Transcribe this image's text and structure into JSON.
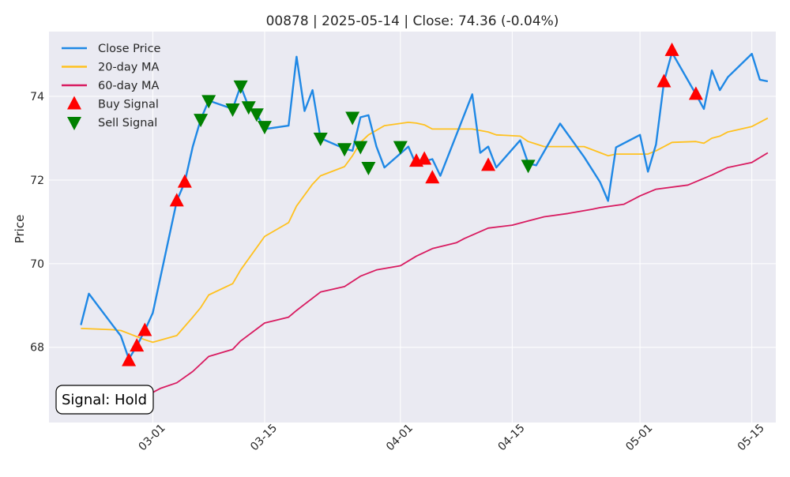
{
  "chart_data": {
    "type": "line",
    "title": "00878 | 2025-05-14 | Close: 74.36 (-0.04%)",
    "xlabel": "",
    "ylabel": "Price",
    "xlim": [
      "2025-02-16",
      "2025-05-18"
    ],
    "ylim": [
      66.2,
      75.55
    ],
    "x_ticks": [
      "03-01",
      "03-15",
      "04-01",
      "04-15",
      "05-01",
      "05-15"
    ],
    "x_tick_dates": [
      "2025-03-01",
      "2025-03-15",
      "2025-04-01",
      "2025-04-15",
      "2025-05-01",
      "2025-05-15"
    ],
    "y_ticks": [
      68,
      70,
      72,
      74
    ],
    "grid": true,
    "legend_position": "top-left",
    "colors": {
      "background": "#eaeaf2",
      "close": "#1f88e5",
      "ma20": "#ffc11f",
      "ma60": "#d81b60",
      "buy": "#ff0000",
      "sell": "#008000"
    },
    "legend": [
      {
        "label": "Close Price",
        "kind": "line",
        "color": "#1f88e5"
      },
      {
        "label": "20-day MA",
        "kind": "line",
        "color": "#ffc11f"
      },
      {
        "label": "60-day MA",
        "kind": "line",
        "color": "#d81b60"
      },
      {
        "label": "Buy Signal",
        "kind": "marker-up",
        "color": "#ff0000"
      },
      {
        "label": "Sell Signal",
        "kind": "marker-down",
        "color": "#008000"
      }
    ],
    "series": [
      {
        "name": "Close Price",
        "points": [
          [
            "2025-02-20",
            68.53
          ],
          [
            "2025-02-21",
            69.28
          ],
          [
            "2025-02-24",
            68.52
          ],
          [
            "2025-02-25",
            68.27
          ],
          [
            "2025-02-26",
            67.72
          ],
          [
            "2025-02-27",
            68.03
          ],
          [
            "2025-02-28",
            68.4
          ],
          [
            "2025-03-01",
            68.82
          ],
          [
            "2025-03-04",
            71.5
          ],
          [
            "2025-03-05",
            71.95
          ],
          [
            "2025-03-06",
            72.8
          ],
          [
            "2025-03-07",
            73.45
          ],
          [
            "2025-03-08",
            73.9
          ],
          [
            "2025-03-11",
            73.7
          ],
          [
            "2025-03-12",
            74.25
          ],
          [
            "2025-03-13",
            73.75
          ],
          [
            "2025-03-14",
            73.58
          ],
          [
            "2025-03-15",
            73.22
          ],
          [
            "2025-03-18",
            73.3
          ],
          [
            "2025-03-19",
            74.95
          ],
          [
            "2025-03-20",
            73.65
          ],
          [
            "2025-03-21",
            74.15
          ],
          [
            "2025-03-22",
            73.0
          ],
          [
            "2025-03-25",
            72.75
          ],
          [
            "2025-03-26",
            72.7
          ],
          [
            "2025-03-27",
            73.5
          ],
          [
            "2025-03-28",
            73.55
          ],
          [
            "2025-03-29",
            72.8
          ],
          [
            "2025-03-30",
            72.3
          ],
          [
            "2025-04-02",
            72.8
          ],
          [
            "2025-04-03",
            72.35
          ],
          [
            "2025-04-04",
            72.45
          ],
          [
            "2025-04-05",
            72.5
          ],
          [
            "2025-04-06",
            72.1
          ],
          [
            "2025-04-10",
            74.05
          ],
          [
            "2025-04-11",
            72.65
          ],
          [
            "2025-04-12",
            72.8
          ],
          [
            "2025-04-13",
            72.3
          ],
          [
            "2025-04-16",
            72.95
          ],
          [
            "2025-04-17",
            72.4
          ],
          [
            "2025-04-18",
            72.35
          ],
          [
            "2025-04-21",
            73.35
          ],
          [
            "2025-04-24",
            72.55
          ],
          [
            "2025-04-25",
            72.25
          ],
          [
            "2025-04-26",
            71.95
          ],
          [
            "2025-04-27",
            71.5
          ],
          [
            "2025-04-28",
            72.78
          ],
          [
            "2025-05-01",
            73.08
          ],
          [
            "2025-05-02",
            72.2
          ],
          [
            "2025-05-03",
            72.85
          ],
          [
            "2025-05-04",
            74.35
          ],
          [
            "2025-05-05",
            75.05
          ],
          [
            "2025-05-08",
            74.05
          ],
          [
            "2025-05-09",
            73.7
          ],
          [
            "2025-05-10",
            74.62
          ],
          [
            "2025-05-11",
            74.15
          ],
          [
            "2025-05-12",
            74.46
          ],
          [
            "2025-05-15",
            75.02
          ],
          [
            "2025-05-16",
            74.4
          ],
          [
            "2025-05-17",
            74.36
          ]
        ]
      },
      {
        "name": "20-day MA",
        "points": [
          [
            "2025-02-20",
            68.45
          ],
          [
            "2025-02-24",
            68.42
          ],
          [
            "2025-02-25",
            68.4
          ],
          [
            "2025-02-28",
            68.18
          ],
          [
            "2025-03-01",
            68.12
          ],
          [
            "2025-03-04",
            68.28
          ],
          [
            "2025-03-06",
            68.72
          ],
          [
            "2025-03-07",
            68.95
          ],
          [
            "2025-03-08",
            69.25
          ],
          [
            "2025-03-11",
            69.52
          ],
          [
            "2025-03-12",
            69.85
          ],
          [
            "2025-03-15",
            70.65
          ],
          [
            "2025-03-18",
            70.98
          ],
          [
            "2025-03-19",
            71.38
          ],
          [
            "2025-03-21",
            71.9
          ],
          [
            "2025-03-22",
            72.1
          ],
          [
            "2025-03-25",
            72.32
          ],
          [
            "2025-03-26",
            72.58
          ],
          [
            "2025-03-27",
            72.9
          ],
          [
            "2025-03-28",
            73.08
          ],
          [
            "2025-03-30",
            73.3
          ],
          [
            "2025-04-02",
            73.38
          ],
          [
            "2025-04-03",
            73.36
          ],
          [
            "2025-04-04",
            73.32
          ],
          [
            "2025-04-05",
            73.22
          ],
          [
            "2025-04-10",
            73.22
          ],
          [
            "2025-04-12",
            73.15
          ],
          [
            "2025-04-13",
            73.08
          ],
          [
            "2025-04-16",
            73.05
          ],
          [
            "2025-04-17",
            72.92
          ],
          [
            "2025-04-18",
            72.86
          ],
          [
            "2025-04-19",
            72.8
          ],
          [
            "2025-04-21",
            72.8
          ],
          [
            "2025-04-24",
            72.8
          ],
          [
            "2025-04-27",
            72.58
          ],
          [
            "2025-04-28",
            72.62
          ],
          [
            "2025-05-02",
            72.62
          ],
          [
            "2025-05-03",
            72.7
          ],
          [
            "2025-05-05",
            72.9
          ],
          [
            "2025-05-08",
            72.92
          ],
          [
            "2025-05-09",
            72.88
          ],
          [
            "2025-05-10",
            73.0
          ],
          [
            "2025-05-11",
            73.05
          ],
          [
            "2025-05-12",
            73.15
          ],
          [
            "2025-05-15",
            73.28
          ],
          [
            "2025-05-17",
            73.48
          ]
        ]
      },
      {
        "name": "60-day MA",
        "points": [
          [
            "2025-02-28",
            66.82
          ],
          [
            "2025-03-01",
            66.92
          ],
          [
            "2025-03-02",
            67.02
          ],
          [
            "2025-03-04",
            67.15
          ],
          [
            "2025-03-06",
            67.42
          ],
          [
            "2025-03-08",
            67.78
          ],
          [
            "2025-03-11",
            67.95
          ],
          [
            "2025-03-12",
            68.15
          ],
          [
            "2025-03-15",
            68.58
          ],
          [
            "2025-03-18",
            68.72
          ],
          [
            "2025-03-19",
            68.88
          ],
          [
            "2025-03-22",
            69.32
          ],
          [
            "2025-03-25",
            69.45
          ],
          [
            "2025-03-27",
            69.7
          ],
          [
            "2025-03-29",
            69.85
          ],
          [
            "2025-04-01",
            69.95
          ],
          [
            "2025-04-03",
            70.18
          ],
          [
            "2025-04-05",
            70.36
          ],
          [
            "2025-04-08",
            70.5
          ],
          [
            "2025-04-09",
            70.6
          ],
          [
            "2025-04-12",
            70.85
          ],
          [
            "2025-04-15",
            70.92
          ],
          [
            "2025-04-17",
            71.02
          ],
          [
            "2025-04-19",
            71.12
          ],
          [
            "2025-04-22",
            71.2
          ],
          [
            "2025-04-25",
            71.3
          ],
          [
            "2025-04-26",
            71.34
          ],
          [
            "2025-04-29",
            71.42
          ],
          [
            "2025-05-01",
            71.62
          ],
          [
            "2025-05-03",
            71.78
          ],
          [
            "2025-05-07",
            71.88
          ],
          [
            "2025-05-08",
            71.96
          ],
          [
            "2025-05-10",
            72.12
          ],
          [
            "2025-05-12",
            72.3
          ],
          [
            "2025-05-15",
            72.42
          ],
          [
            "2025-05-17",
            72.65
          ]
        ]
      }
    ],
    "buy_signals": [
      [
        "2025-02-26",
        67.68
      ],
      [
        "2025-02-27",
        68.03
      ],
      [
        "2025-02-28",
        68.4
      ],
      [
        "2025-03-04",
        71.5
      ],
      [
        "2025-03-05",
        71.95
      ],
      [
        "2025-04-03",
        72.45
      ],
      [
        "2025-04-04",
        72.5
      ],
      [
        "2025-04-05",
        72.05
      ],
      [
        "2025-04-12",
        72.35
      ],
      [
        "2025-05-04",
        74.35
      ],
      [
        "2025-05-05",
        75.1
      ],
      [
        "2025-05-08",
        74.05
      ]
    ],
    "sell_signals": [
      [
        "2025-03-07",
        73.45
      ],
      [
        "2025-03-08",
        73.9
      ],
      [
        "2025-03-11",
        73.7
      ],
      [
        "2025-03-12",
        74.25
      ],
      [
        "2025-03-13",
        73.75
      ],
      [
        "2025-03-14",
        73.58
      ],
      [
        "2025-03-15",
        73.28
      ],
      [
        "2025-03-22",
        73.0
      ],
      [
        "2025-03-25",
        72.75
      ],
      [
        "2025-03-26",
        73.5
      ],
      [
        "2025-03-27",
        72.8
      ],
      [
        "2025-03-28",
        72.3
      ],
      [
        "2025-04-01",
        72.8
      ],
      [
        "2025-04-17",
        72.35
      ]
    ],
    "annotation": "Signal: Hold"
  }
}
